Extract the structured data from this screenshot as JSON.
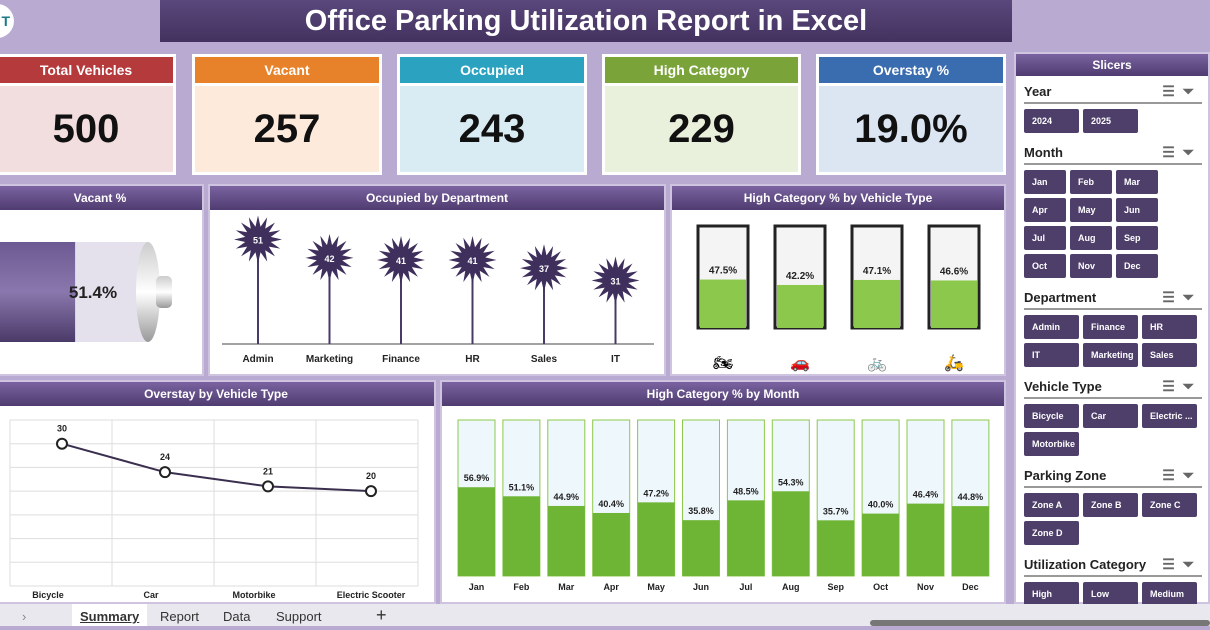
{
  "title": "Office Parking Utilization Report in Excel",
  "logo": "T",
  "kpis": [
    {
      "label": "Total Vehicles",
      "value": "500",
      "head": "#b53a3c",
      "body": "#f2dede"
    },
    {
      "label": "Vacant",
      "value": "257",
      "head": "#e8822a",
      "body": "#fdeadb"
    },
    {
      "label": "Occupied",
      "value": "243",
      "head": "#2ba3c0",
      "body": "#d9ecf3"
    },
    {
      "label": "High Category",
      "value": "229",
      "head": "#7aa33a",
      "body": "#e9f0dc"
    },
    {
      "label": "Overstay  %",
      "value": "19.0%",
      "head": "#3a6db0",
      "body": "#dce5f2"
    }
  ],
  "vacant": {
    "title": "Vacant %",
    "value": "51.4%",
    "fraction": 0.514
  },
  "chart_data": [
    {
      "type": "bar",
      "title": "Occupied by Department",
      "categories": [
        "Admin",
        "Marketing",
        "Finance",
        "HR",
        "Sales",
        "IT"
      ],
      "values": [
        51,
        42,
        41,
        41,
        37,
        31
      ]
    },
    {
      "type": "bar",
      "title": "High Category % by Vehicle Type",
      "categories": [
        "Motorbike",
        "Car",
        "Bicycle",
        "Electric Scooter"
      ],
      "values": [
        47.5,
        42.2,
        47.1,
        46.6
      ],
      "labels": [
        "47.5%",
        "42.2%",
        "47.1%",
        "46.6%"
      ],
      "ylim": [
        0,
        100
      ]
    },
    {
      "type": "line",
      "title": "Overstay by Vehicle Type",
      "categories": [
        "Bicycle",
        "Car",
        "Motorbike",
        "Electric Scooter"
      ],
      "values": [
        30,
        24,
        21,
        20
      ],
      "ylim": [
        0,
        35
      ]
    },
    {
      "type": "bar",
      "title": "High Category % by Month",
      "categories": [
        "Jan",
        "Feb",
        "Mar",
        "Apr",
        "May",
        "Jun",
        "Jul",
        "Aug",
        "Sep",
        "Oct",
        "Nov",
        "Dec"
      ],
      "values": [
        56.9,
        51.1,
        44.9,
        40.4,
        47.2,
        35.8,
        48.5,
        54.3,
        35.7,
        40.0,
        46.4,
        44.8
      ],
      "labels": [
        "56.9%",
        "51.1%",
        "44.9%",
        "40.4%",
        "47.2%",
        "35.8%",
        "48.5%",
        "54.3%",
        "35.7%",
        "40.0%",
        "46.4%",
        "44.8%"
      ],
      "ylim": [
        0,
        100
      ]
    }
  ],
  "slicers": {
    "title": "Slicers",
    "groups": [
      {
        "title": "Year",
        "items": [
          "2024",
          "2025"
        ],
        "cols": 3
      },
      {
        "title": "Month",
        "items": [
          "Jan",
          "Feb",
          "Mar",
          "Apr",
          "May",
          "Jun",
          "Jul",
          "Aug",
          "Sep",
          "Oct",
          "Nov",
          "Dec"
        ],
        "cols": 4
      },
      {
        "title": "Department",
        "items": [
          "Admin",
          "Finance",
          "HR",
          "IT",
          "Marketing",
          "Sales"
        ],
        "cols": 3
      },
      {
        "title": "Vehicle Type",
        "items": [
          "Bicycle",
          "Car",
          "Electric ...",
          "Motorbike"
        ],
        "cols": 3
      },
      {
        "title": "Parking Zone",
        "items": [
          "Zone A",
          "Zone B",
          "Zone C",
          "Zone D"
        ],
        "cols": 3
      },
      {
        "title": "Utilization Category",
        "items": [
          "High",
          "Low",
          "Medium"
        ],
        "cols": 3
      }
    ]
  },
  "sheet_tabs": [
    "Summary",
    "Report",
    "Data",
    "Support"
  ],
  "add_sheet": "+"
}
